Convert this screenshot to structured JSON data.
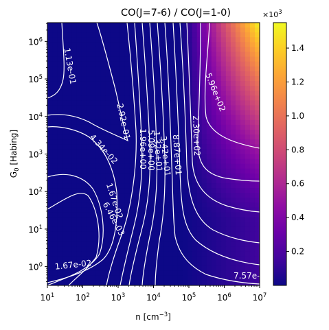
{
  "chart_data": {
    "type": "heatmap",
    "title": "CO(J=7-6) / CO(J=1-0)",
    "xlabel_main": "n [cm",
    "xlabel_sup": "−3",
    "xlabel_tail": "]",
    "ylabel_main": "G",
    "ylabel_sub": "0",
    "ylabel_tail": " [Habing]",
    "x_scale": "log",
    "y_scale": "log",
    "xlim": [
      10,
      10000000
    ],
    "ylim": [
      0.316,
      3160000
    ],
    "x_ticks": [
      {
        "base": "10",
        "exp": "1"
      },
      {
        "base": "10",
        "exp": "2"
      },
      {
        "base": "10",
        "exp": "3"
      },
      {
        "base": "10",
        "exp": "4"
      },
      {
        "base": "10",
        "exp": "5"
      },
      {
        "base": "10",
        "exp": "6"
      },
      {
        "base": "10",
        "exp": "7"
      }
    ],
    "y_ticks": [
      {
        "base": "10",
        "exp": "0"
      },
      {
        "base": "10",
        "exp": "1"
      },
      {
        "base": "10",
        "exp": "2"
      },
      {
        "base": "10",
        "exp": "3"
      },
      {
        "base": "10",
        "exp": "4"
      },
      {
        "base": "10",
        "exp": "5"
      },
      {
        "base": "10",
        "exp": "6"
      }
    ],
    "colormap": "plasma",
    "colorbar": {
      "range": [
        0.0,
        1.55
      ],
      "ticks": [
        "0.2",
        "0.4",
        "0.6",
        "0.8",
        "1.0",
        "1.2",
        "1.4"
      ],
      "multiplier_base": "×10",
      "multiplier_exp": "3"
    },
    "contour_levels": [
      {
        "label": "1.13e-01"
      },
      {
        "label": "2.92e-01"
      },
      {
        "label": "4.34e-02"
      },
      {
        "label": "1.67e-02"
      },
      {
        "label": "6.46e-03"
      },
      {
        "label": "1.67e-02"
      },
      {
        "label": "1.96e+00"
      },
      {
        "label": "5.09e+00"
      },
      {
        "label": "1.32e+01"
      },
      {
        "label": "3.42e+01"
      },
      {
        "label": "8.87e+01"
      },
      {
        "label": "2.30e+02"
      },
      {
        "label": "5.96e+02"
      },
      {
        "label": "7.57e-"
      }
    ]
  }
}
